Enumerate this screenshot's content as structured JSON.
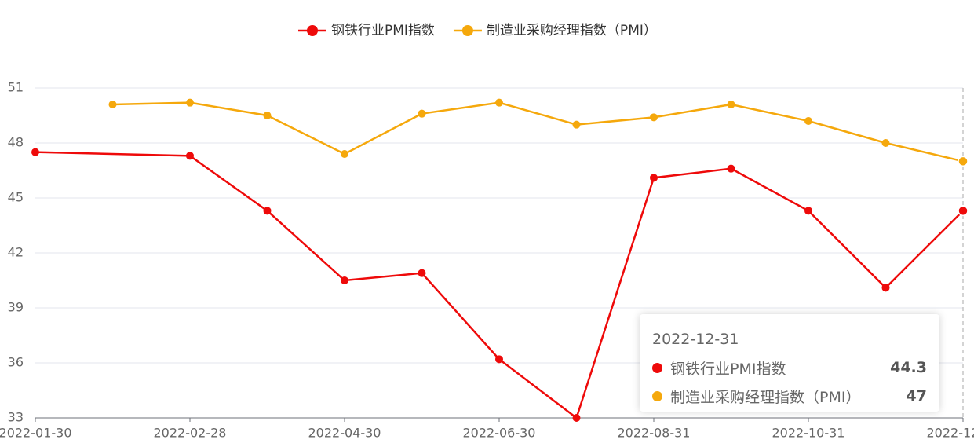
{
  "chart_data": {
    "type": "line",
    "categories": [
      "2022-01-30",
      null,
      "2022-02-28",
      null,
      "2022-04-30",
      null,
      "2022-06-30",
      null,
      "2022-08-31",
      null,
      "2022-10-31",
      null,
      "2022-12-31"
    ],
    "series": [
      {
        "name": "钢铁行业PMI指数",
        "color": "#ee0a0a",
        "values": [
          47.5,
          null,
          47.3,
          44.3,
          40.5,
          40.9,
          36.2,
          33,
          46.1,
          46.6,
          44.3,
          40.1,
          44.3
        ]
      },
      {
        "name": "制造业采购经理指数（PMI）",
        "color": "#f5a80c",
        "values": [
          null,
          50.1,
          50.2,
          49.5,
          47.4,
          49.6,
          50.2,
          49.0,
          49.4,
          50.1,
          49.2,
          48.0,
          47
        ]
      }
    ],
    "ylim": [
      33,
      51
    ],
    "yticks": [
      33,
      36,
      39,
      42,
      45,
      48,
      51
    ],
    "grid": true,
    "connect_nulls": true,
    "legend": "top",
    "tooltip_index": 12
  }
}
